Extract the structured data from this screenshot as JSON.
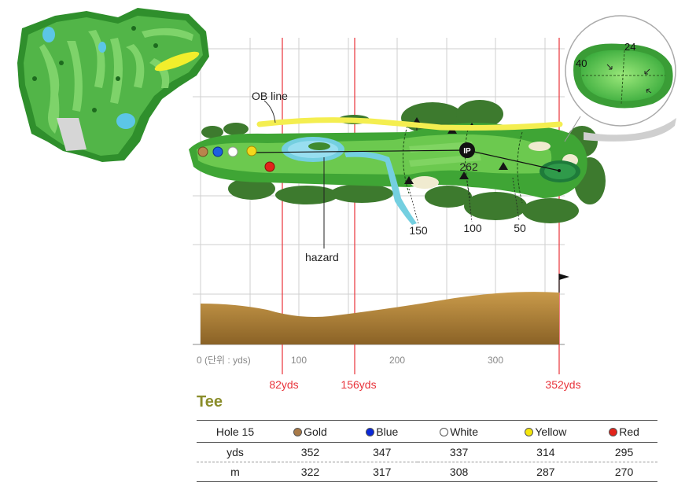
{
  "annotations": {
    "ob_line": "OB line",
    "hazard": "hazard",
    "ip": "IP",
    "ip_distance": "262",
    "marker_150": "150",
    "marker_100": "100",
    "marker_50": "50",
    "green_front": "40",
    "green_depth": "24"
  },
  "axis": {
    "origin_label": "0 (단위 : yds)",
    "ticks": [
      "100",
      "200",
      "300"
    ],
    "red_marks": [
      "82yds",
      "156yds",
      "352yds"
    ]
  },
  "tee_title": "Tee",
  "table": {
    "header": [
      "Hole 15",
      "Gold",
      "Blue",
      "White",
      "Yellow",
      "Red"
    ],
    "colors": [
      "#a87a48",
      "#0a28d8",
      "#ffffff",
      "#f4e60c",
      "#e2231a"
    ],
    "rows": [
      {
        "label": "yds",
        "values": [
          "352",
          "347",
          "337",
          "314",
          "295"
        ]
      },
      {
        "label": "m",
        "values": [
          "322",
          "317",
          "308",
          "287",
          "270"
        ]
      }
    ]
  }
}
